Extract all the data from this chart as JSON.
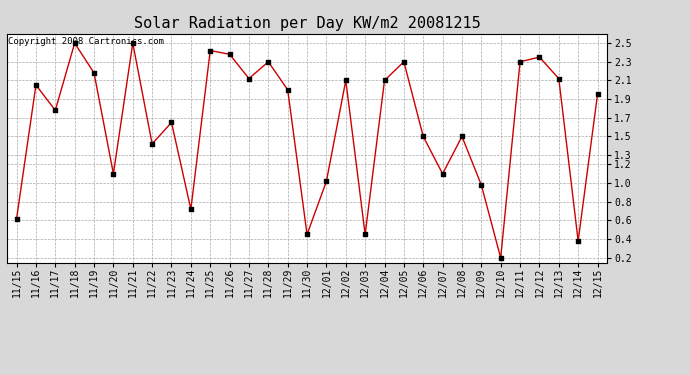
{
  "title": "Solar Radiation per Day KW/m2 20081215",
  "copyright": "Copyright 2008 Cartronics.com",
  "labels": [
    "11/15",
    "11/16",
    "11/17",
    "11/18",
    "11/19",
    "11/20",
    "11/21",
    "11/22",
    "11/23",
    "11/24",
    "11/25",
    "11/26",
    "11/27",
    "11/28",
    "11/29",
    "11/30",
    "12/01",
    "12/02",
    "12/03",
    "12/04",
    "12/05",
    "12/06",
    "12/07",
    "12/08",
    "12/09",
    "12/10",
    "12/11",
    "12/12",
    "12/13",
    "12/14",
    "12/15"
  ],
  "values": [
    0.62,
    2.05,
    1.78,
    2.5,
    2.18,
    1.1,
    2.5,
    1.42,
    1.65,
    0.72,
    2.42,
    2.38,
    2.12,
    2.3,
    2.0,
    0.45,
    1.02,
    2.1,
    0.45,
    2.1,
    2.3,
    1.5,
    1.1,
    1.5,
    0.98,
    0.2,
    2.3,
    2.35,
    2.12,
    0.38,
    1.95
  ],
  "line_color": "#cc0000",
  "marker_color": "#000000",
  "bg_color": "#d8d8d8",
  "plot_bg_color": "#ffffff",
  "grid_color": "#aaaaaa",
  "yticks": [
    0.2,
    0.4,
    0.6,
    0.8,
    1.0,
    1.2,
    1.3,
    1.5,
    1.7,
    1.9,
    2.1,
    2.3,
    2.5
  ],
  "title_fontsize": 11,
  "tick_fontsize": 7,
  "copyright_fontsize": 6.5
}
